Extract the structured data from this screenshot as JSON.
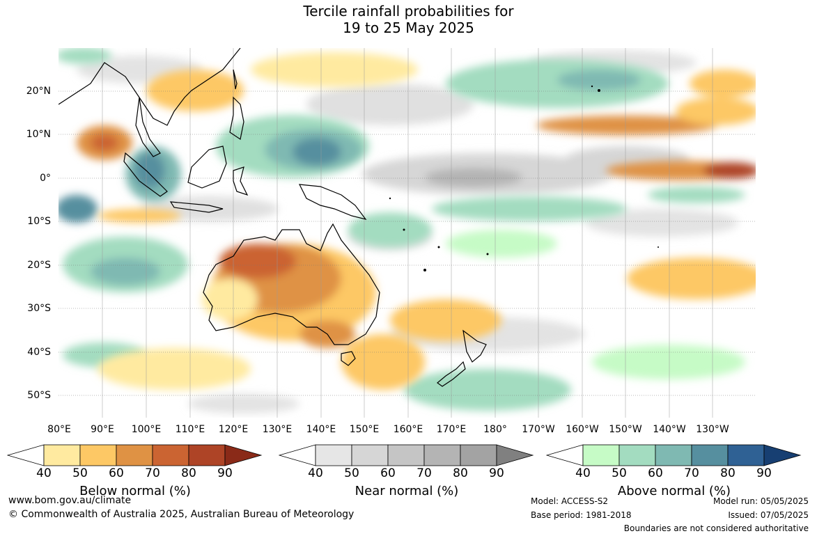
{
  "title_line1": "Tercile rainfall probabilities for",
  "title_line2": "19 to 25 May 2025",
  "lon_labels": [
    "80°E",
    "90°E",
    "100°E",
    "110°E",
    "120°E",
    "130°E",
    "140°E",
    "150°E",
    "160°E",
    "170°E",
    "180°",
    "170°W",
    "160°W",
    "150°W",
    "140°W",
    "130°W"
  ],
  "lat_labels": [
    "20°N",
    "10°N",
    "0°",
    "10°S",
    "20°S",
    "30°S",
    "40°S",
    "50°S"
  ],
  "colorbars": [
    {
      "title": "Below normal (%)",
      "ticks": [
        "40",
        "50",
        "60",
        "70",
        "80",
        "90"
      ],
      "colors": [
        "#ffffff",
        "#ffeaa0",
        "#fdc865",
        "#df9244",
        "#cb6432",
        "#ae4426",
        "#8a2a18"
      ]
    },
    {
      "title": "Near normal (%)",
      "ticks": [
        "40",
        "50",
        "60",
        "70",
        "80",
        "90"
      ],
      "colors": [
        "#ffffff",
        "#e6e6e6",
        "#d6d6d6",
        "#c5c5c5",
        "#b4b4b4",
        "#a3a3a3",
        "#808080"
      ]
    },
    {
      "title": "Above normal (%)",
      "ticks": [
        "40",
        "50",
        "60",
        "70",
        "80",
        "90"
      ],
      "colors": [
        "#ffffff",
        "#c6fbc6",
        "#a3dcc0",
        "#7fb9b2",
        "#568f9f",
        "#2f6194",
        "#173f72"
      ]
    }
  ],
  "footer": {
    "url": "www.bom.gov.au/climate",
    "copyright": "© Commonwealth of Australia 2025, Australian Bureau of Meteorology",
    "model": "Model: ACCESS-S2",
    "base_period": "Base period: 1981-2018",
    "model_run": "Model run: 05/05/2025",
    "issued": "Issued: 07/05/2025",
    "boundaries": "Boundaries are not considered authoritative"
  }
}
